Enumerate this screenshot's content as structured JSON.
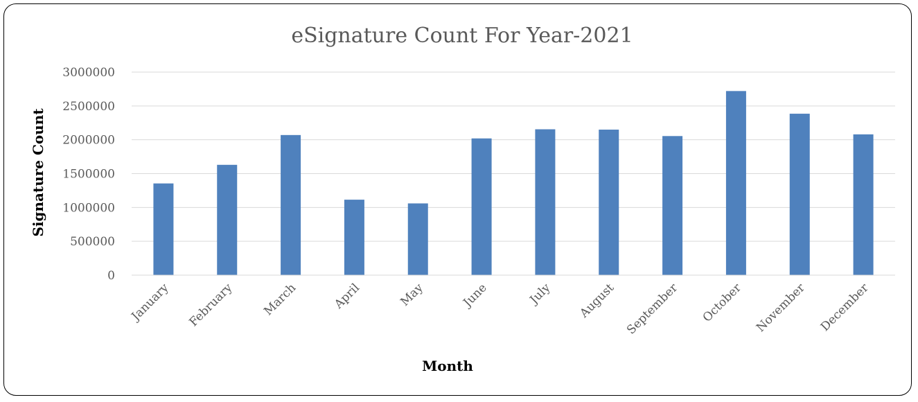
{
  "chart_data": {
    "type": "bar",
    "title": "eSignature Count For Year-2021",
    "xlabel": "Month",
    "ylabel": "Signature Count",
    "categories": [
      "January",
      "February",
      "March",
      "April",
      "May",
      "June",
      "July",
      "August",
      "September",
      "October",
      "November",
      "December"
    ],
    "values": [
      1355000,
      1630000,
      2070000,
      1115000,
      1060000,
      2020000,
      2155000,
      2150000,
      2055000,
      2720000,
      2385000,
      2080000
    ],
    "ylim": [
      0,
      3000000
    ],
    "yticks": [
      "0",
      "500000",
      "1000000",
      "1500000",
      "2000000",
      "2500000",
      "3000000"
    ],
    "grid": true,
    "legend": "none",
    "bar_color": "#4f81bd"
  }
}
